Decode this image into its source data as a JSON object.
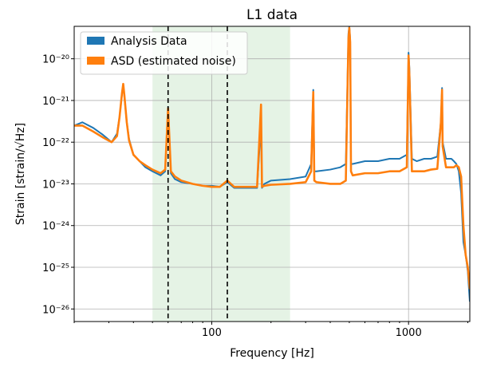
{
  "chart_data": {
    "type": "line",
    "title": "L1 data",
    "xlabel": "Frequency [Hz]",
    "ylabel": "Strain [strain/√Hz]",
    "xscale": "log",
    "yscale": "log",
    "xlim": [
      20,
      2048
    ],
    "ylim": [
      5e-27,
      6e-20
    ],
    "grid": true,
    "legend_position": "top-left",
    "x_tick_labels": [
      {
        "value": 100,
        "label": "100"
      },
      {
        "value": 1000,
        "label": "1000"
      }
    ],
    "y_tick_labels": [
      {
        "value": 1e-26,
        "label": "10⁻²⁶"
      },
      {
        "value": 1e-25,
        "label": "10⁻²⁵"
      },
      {
        "value": 1e-24,
        "label": "10⁻²⁴"
      },
      {
        "value": 1e-23,
        "label": "10⁻²³"
      },
      {
        "value": 1e-22,
        "label": "10⁻²²"
      },
      {
        "value": 1e-21,
        "label": "10⁻²¹"
      },
      {
        "value": 1e-20,
        "label": "10⁻²⁰"
      }
    ],
    "shaded_band": {
      "x_start": 50,
      "x_end": 250,
      "color": "#e5f3e5"
    },
    "vlines": [
      {
        "x": 60,
        "style": "dashed",
        "color": "#000000"
      },
      {
        "x": 120,
        "style": "dashed",
        "color": "#000000"
      }
    ],
    "series": [
      {
        "name": "Analysis Data",
        "color": "#1f77b4",
        "x": [
          20,
          22,
          25,
          28,
          31,
          33,
          34,
          35,
          35.5,
          36,
          37,
          38,
          40,
          43,
          46,
          50,
          55,
          58,
          60,
          62,
          65,
          70,
          80,
          90,
          100,
          110,
          120,
          130,
          150,
          170,
          178,
          180,
          185,
          200,
          250,
          300,
          320,
          328,
          332,
          340,
          400,
          450,
          480,
          495,
          500,
          505,
          510,
          520,
          600,
          700,
          800,
          900,
          980,
          1000,
          1010,
          1040,
          1100,
          1200,
          1300,
          1400,
          1460,
          1475,
          1480,
          1490,
          1550,
          1650,
          1700,
          1750,
          1800,
          1850,
          1900,
          1950,
          2000,
          2048
        ],
        "y": [
          2.5e-22,
          3e-22,
          2.2e-22,
          1.5e-22,
          1e-22,
          1.6e-22,
          4e-22,
          1.5e-21,
          2.3e-21,
          1.2e-21,
          3e-22,
          1.2e-22,
          5e-23,
          3.5e-23,
          2.5e-23,
          2e-23,
          1.6e-23,
          2e-23,
          7e-22,
          1.8e-23,
          1.3e-23,
          1.1e-23,
          1e-23,
          9e-24,
          9e-24,
          8.5e-24,
          1.1e-23,
          8e-24,
          8e-24,
          8e-24,
          3e-22,
          8e-24,
          1e-23,
          1.2e-23,
          1.3e-23,
          1.5e-23,
          3e-23,
          1.8e-21,
          2e-23,
          2e-23,
          2.2e-23,
          2.5e-23,
          3e-23,
          4e-20,
          6e-20,
          3e-20,
          3e-23,
          3e-23,
          3.5e-23,
          3.5e-23,
          4e-23,
          4e-23,
          5e-23,
          1.4e-20,
          6e-21,
          4e-23,
          3.5e-23,
          4e-23,
          4e-23,
          4.5e-23,
          3e-22,
          1.2e-21,
          2e-21,
          1e-22,
          4e-23,
          4e-23,
          3.5e-23,
          3e-23,
          2e-23,
          6e-24,
          4e-25,
          2e-25,
          8e-26,
          1.5e-26
        ]
      },
      {
        "name": "ASD (estimated noise)",
        "color": "#ff7f0e",
        "x": [
          20,
          22,
          25,
          28,
          31,
          33,
          34,
          35,
          35.5,
          36,
          37,
          38,
          40,
          43,
          46,
          50,
          55,
          58,
          60,
          62,
          65,
          70,
          80,
          90,
          100,
          110,
          120,
          130,
          150,
          170,
          178,
          180,
          185,
          200,
          250,
          300,
          320,
          328,
          332,
          340,
          400,
          450,
          480,
          495,
          500,
          505,
          510,
          520,
          600,
          700,
          800,
          900,
          980,
          1000,
          1010,
          1040,
          1100,
          1200,
          1300,
          1400,
          1460,
          1475,
          1480,
          1490,
          1550,
          1650,
          1700,
          1750,
          1800,
          1850,
          1900,
          1950,
          2000,
          2048
        ],
        "y": [
          2.5e-22,
          2.5e-22,
          1.8e-22,
          1.3e-22,
          1e-22,
          1.4e-22,
          4e-22,
          1.5e-21,
          2.5e-21,
          1.3e-21,
          3e-22,
          1.1e-22,
          5e-23,
          3.5e-23,
          2.8e-23,
          2.2e-23,
          1.8e-23,
          2.2e-23,
          6.5e-22,
          2e-23,
          1.5e-23,
          1.2e-23,
          1e-23,
          9e-24,
          8.5e-24,
          8.5e-24,
          1.2e-23,
          8.5e-24,
          8.5e-24,
          8.5e-24,
          8e-22,
          8.5e-24,
          9e-24,
          9.5e-24,
          1e-23,
          1.1e-23,
          2e-23,
          1.6e-21,
          1.2e-23,
          1.1e-23,
          1e-23,
          1e-23,
          1.2e-23,
          3e-20,
          5.5e-20,
          2.5e-20,
          2e-23,
          1.6e-23,
          1.8e-23,
          1.8e-23,
          2e-23,
          2e-23,
          2.5e-23,
          1.2e-20,
          4e-21,
          2e-23,
          2e-23,
          2e-23,
          2.2e-23,
          2.3e-23,
          3e-22,
          1.2e-21,
          1.8e-21,
          8e-23,
          2.5e-23,
          2.5e-23,
          2.5e-23,
          2.8e-23,
          2.5e-23,
          1.5e-23,
          1e-24,
          2e-25,
          1e-25,
          3e-26
        ]
      }
    ]
  }
}
